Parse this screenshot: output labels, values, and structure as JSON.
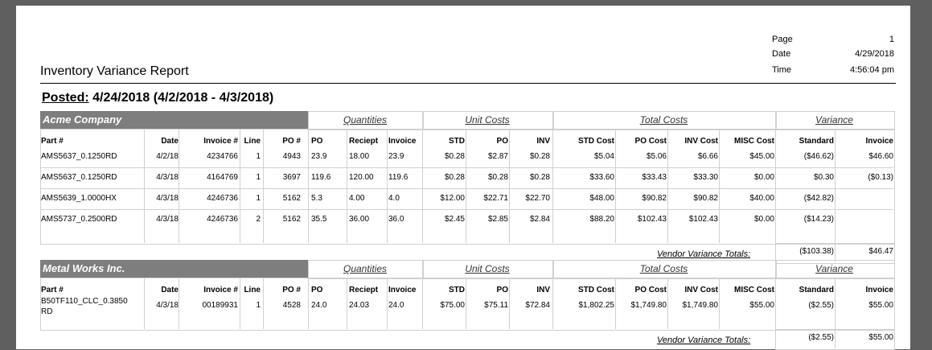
{
  "report": {
    "title": "Inventory Variance Report",
    "posted_label": "Posted:",
    "posted_value": "4/24/2018 (4/2/2018 - 4/3/2018)"
  },
  "meta": {
    "page_label": "Page",
    "page_value": "1",
    "date_label": "Date",
    "date_value": "4/29/2018",
    "time_label": "Time",
    "time_value": "4:56:04 pm"
  },
  "group_headers": {
    "quantities": "Quantities",
    "unit_costs": "Unit Costs",
    "total_costs": "Total Costs",
    "variance": "Variance"
  },
  "columns": {
    "part": "Part #",
    "date": "Date",
    "invoice_no": "Invoice #",
    "line": "Line",
    "po_no": "PO #",
    "po": "PO",
    "receipt": "Reciept",
    "invoice": "Invoice",
    "std": "STD",
    "po_cost": "PO",
    "inv": "INV",
    "std_cost": "STD Cost",
    "po_total": "PO Cost",
    "inv_cost": "INV Cost",
    "misc_cost": "MISC Cost",
    "standard": "Standard",
    "invoice_var": "Invoice"
  },
  "vendor_totals_label": "Vendor Variance Totals:",
  "vendors": [
    {
      "name": "Acme Company",
      "rows": [
        {
          "part": "AMS5637_0.1250RD",
          "date": "4/2/18",
          "invoice_no": "4234766",
          "line": "1",
          "po_no": "4943",
          "po": "23.9",
          "receipt": "18.00",
          "invoice": "23.9",
          "std": "$0.28",
          "po_cost": "$2.87",
          "inv": "$0.28",
          "std_cost": "$5.04",
          "po_total": "$5.06",
          "inv_cost": "$6.66",
          "misc": "$45.00",
          "var_std": "($46.62)",
          "var_inv": "$46.60"
        },
        {
          "part": "AMS5637_0.1250RD",
          "date": "4/3/18",
          "invoice_no": "4164769",
          "line": "1",
          "po_no": "3697",
          "po": "119.6",
          "receipt": "120.00",
          "invoice": "119.6",
          "std": "$0.28",
          "po_cost": "$0.28",
          "inv": "$0.28",
          "std_cost": "$33.60",
          "po_total": "$33.43",
          "inv_cost": "$33.30",
          "misc": "$0.00",
          "var_std": "$0.30",
          "var_inv": "($0.13)"
        },
        {
          "part": "AMS5639_1.0000HX",
          "date": "4/3/18",
          "invoice_no": "4246736",
          "line": "1",
          "po_no": "5162",
          "po": "5.3",
          "receipt": "4.00",
          "invoice": "4.0",
          "std": "$12.00",
          "po_cost": "$22.71",
          "inv": "$22.70",
          "std_cost": "$48.00",
          "po_total": "$90.82",
          "inv_cost": "$90.82",
          "misc": "$40.00",
          "var_std": "($42.82)",
          "var_inv": ""
        },
        {
          "part": "AMS5737_0.2500RD",
          "date": "4/3/18",
          "invoice_no": "4246736",
          "line": "2",
          "po_no": "5162",
          "po": "35.5",
          "receipt": "36.00",
          "invoice": "36.0",
          "std": "$2.45",
          "po_cost": "$2.85",
          "inv": "$2.84",
          "std_cost": "$88.20",
          "po_total": "$102.43",
          "inv_cost": "$102.43",
          "misc": "$0.00",
          "var_std": "($14.23)",
          "var_inv": ""
        }
      ],
      "totals": {
        "standard": "($103.38)",
        "invoice": "$46.47"
      }
    },
    {
      "name": "Metal Works Inc.",
      "rows": [
        {
          "part": "B50TF110_CLC_0.3850\nRD",
          "date": "4/3/18",
          "invoice_no": "00189931",
          "line": "1",
          "po_no": "4528",
          "po": "24.0",
          "receipt": "24.03",
          "invoice": "24.0",
          "std": "$75.00",
          "po_cost": "$75.11",
          "inv": "$72.84",
          "std_cost": "$1,802.25",
          "po_total": "$1,749.80",
          "inv_cost": "$1,749.80",
          "misc": "$55.00",
          "var_std": "($2.55)",
          "var_inv": "$55.00"
        }
      ],
      "totals": {
        "standard": "($2.55)",
        "invoice": "$55.00"
      }
    }
  ]
}
